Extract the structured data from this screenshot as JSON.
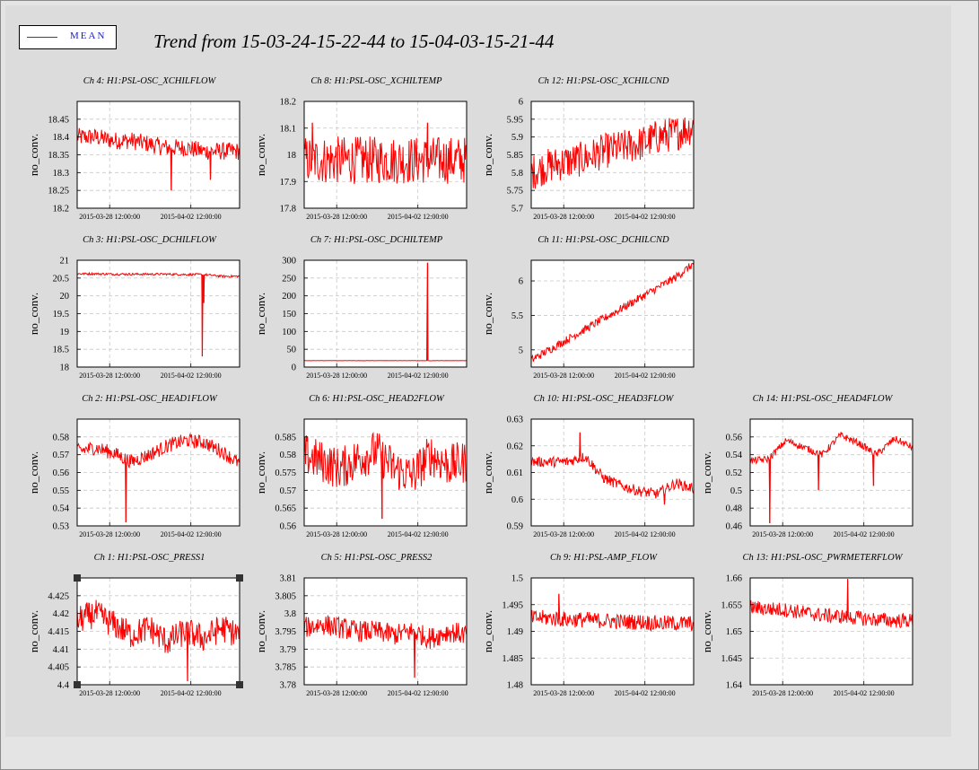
{
  "title": "Trend from 15-03-24-15-22-44 to 15-04-03-15-21-44",
  "legend": {
    "label": "MEAN",
    "color": "#e00000"
  },
  "selected_panel": "Ch 1: H1:PSL-OSC_PRESS1",
  "chart_data": [
    {
      "type": "line",
      "title": "Ch 4: H1:PSL-OSC_XCHILFLOW",
      "ylabel": "no_conv.",
      "ylim": [
        18.2,
        18.5
      ],
      "yticks": [
        "18.2",
        "18.25",
        "18.3",
        "18.35",
        "18.4",
        "18.45"
      ],
      "xticks": [
        "2015-03-28 12:00:00",
        "2015-04-02 12:00:00"
      ],
      "x_ticks_frac": [
        0.2,
        0.7
      ],
      "series": [
        {
          "name": "MEAN",
          "color": "#ff0000",
          "values": [
            18.4,
            18.4,
            18.39,
            18.39,
            18.38,
            18.37,
            18.37,
            18.36,
            18.36,
            18.36
          ],
          "noise": 0.025,
          "spikes": [
            {
              "at": 0.58,
              "v": 18.25
            },
            {
              "at": 0.82,
              "v": 18.28
            }
          ]
        }
      ]
    },
    {
      "type": "line",
      "title": "Ch 8: H1:PSL-OSC_XCHILTEMP",
      "ylabel": "no_conv.",
      "ylim": [
        17.8,
        18.2
      ],
      "yticks": [
        "17.8",
        "17.9",
        "18",
        "18.1",
        "18.2"
      ],
      "xticks": [
        "2015-03-28 12:00:00",
        "2015-04-02 12:00:00"
      ],
      "x_ticks_frac": [
        0.2,
        0.7
      ],
      "series": [
        {
          "name": "MEAN",
          "color": "#ff0000",
          "values": [
            17.98,
            17.98,
            17.98,
            17.98,
            17.98,
            17.98,
            17.98,
            17.98,
            17.98,
            17.98
          ],
          "noise": 0.09,
          "spikes": [
            {
              "at": 0.05,
              "v": 18.12
            },
            {
              "at": 0.76,
              "v": 18.12
            }
          ]
        }
      ]
    },
    {
      "type": "line",
      "title": "Ch 12: H1:PSL-OSC_XCHILCND",
      "ylabel": "no_conv.",
      "ylim": [
        5.7,
        6.0
      ],
      "yticks": [
        "5.7",
        "5.75",
        "5.8",
        "5.85",
        "5.9",
        "5.95",
        "6"
      ],
      "xticks": [
        "2015-03-28 12:00:00",
        "2015-04-02 12:00:00"
      ],
      "x_ticks_frac": [
        0.2,
        0.7
      ],
      "series": [
        {
          "name": "MEAN",
          "color": "#ff0000",
          "values": [
            5.8,
            5.82,
            5.83,
            5.84,
            5.86,
            5.87,
            5.88,
            5.9,
            5.91,
            5.93
          ],
          "noise": 0.05,
          "spikes": []
        }
      ]
    },
    {
      "type": "line",
      "title": "Ch 3: H1:PSL-OSC_DCHILFLOW",
      "ylabel": "no_conv.",
      "ylim": [
        18,
        21
      ],
      "yticks": [
        "18",
        "18.5",
        "19",
        "19.5",
        "20",
        "20.5",
        "21"
      ],
      "xticks": [
        "2015-03-28 12:00:00",
        "2015-04-02 12:00:00"
      ],
      "x_ticks_frac": [
        0.2,
        0.7
      ],
      "series": [
        {
          "name": "MEAN",
          "color": "#ff0000",
          "values": [
            20.62,
            20.62,
            20.61,
            20.61,
            20.61,
            20.61,
            20.6,
            20.6,
            20.55,
            20.55
          ],
          "noise": 0.03,
          "spikes": [
            {
              "at": 0.77,
              "v": 18.3
            },
            {
              "at": 0.78,
              "v": 19.8
            }
          ]
        }
      ]
    },
    {
      "type": "line",
      "title": "Ch 7: H1:PSL-OSC_DCHILTEMP",
      "ylabel": "no_conv.",
      "ylim": [
        0,
        300
      ],
      "yticks": [
        "0",
        "50",
        "100",
        "150",
        "200",
        "250",
        "300"
      ],
      "xticks": [
        "2015-03-28 12:00:00",
        "2015-04-02 12:00:00"
      ],
      "x_ticks_frac": [
        0.2,
        0.7
      ],
      "series": [
        {
          "name": "MEAN",
          "color": "#ff0000",
          "values": [
            18,
            18,
            18,
            18,
            18,
            18,
            18,
            18,
            18,
            18
          ],
          "noise": 0.3,
          "spikes": [
            {
              "at": 0.76,
              "v": 293
            }
          ]
        }
      ]
    },
    {
      "type": "line",
      "title": "Ch 11: H1:PSL-OSC_DCHILCND",
      "ylabel": "no_conv.",
      "ylim": [
        4.75,
        6.3
      ],
      "yticks": [
        "5",
        "5.5",
        "6"
      ],
      "xticks": [
        "2015-03-28 12:00:00",
        "2015-04-02 12:00:00"
      ],
      "x_ticks_frac": [
        0.2,
        0.7
      ],
      "series": [
        {
          "name": "MEAN",
          "color": "#ff0000",
          "values": [
            4.85,
            5.0,
            5.15,
            5.3,
            5.45,
            5.6,
            5.75,
            5.9,
            6.05,
            6.25
          ],
          "noise": 0.06,
          "spikes": []
        }
      ]
    },
    {
      "type": "line",
      "title": "Ch 2: H1:PSL-OSC_HEAD1FLOW",
      "ylabel": "no_conv.",
      "ylim": [
        0.53,
        0.59
      ],
      "yticks": [
        "0.53",
        "0.54",
        "0.55",
        "0.56",
        "0.57",
        "0.58"
      ],
      "xticks": [
        "2015-03-28 12:00:00",
        "2015-04-02 12:00:00"
      ],
      "x_ticks_frac": [
        0.2,
        0.7
      ],
      "series": [
        {
          "name": "MEAN",
          "color": "#ff0000",
          "values": [
            0.572,
            0.574,
            0.571,
            0.566,
            0.57,
            0.575,
            0.578,
            0.577,
            0.572,
            0.565
          ],
          "noise": 0.004,
          "spikes": [
            {
              "at": 0.3,
              "v": 0.532
            }
          ]
        }
      ]
    },
    {
      "type": "line",
      "title": "Ch 6: H1:PSL-OSC_HEAD2FLOW",
      "ylabel": "no_conv.",
      "ylim": [
        0.56,
        0.59
      ],
      "yticks": [
        "0.56",
        "0.565",
        "0.57",
        "0.575",
        "0.58",
        "0.585"
      ],
      "xticks": [
        "2015-03-28 12:00:00",
        "2015-04-02 12:00:00"
      ],
      "x_ticks_frac": [
        0.2,
        0.7
      ],
      "series": [
        {
          "name": "MEAN",
          "color": "#ff0000",
          "values": [
            0.58,
            0.578,
            0.576,
            0.579,
            0.581,
            0.576,
            0.574,
            0.58,
            0.577,
            0.578
          ],
          "noise": 0.006,
          "spikes": [
            {
              "at": 0.48,
              "v": 0.562
            }
          ]
        }
      ]
    },
    {
      "type": "line",
      "title": "Ch 10: H1:PSL-OSC_HEAD3FLOW",
      "ylabel": "no_conv.",
      "ylim": [
        0.59,
        0.63
      ],
      "yticks": [
        "0.59",
        "0.6",
        "0.61",
        "0.62",
        "0.63"
      ],
      "xticks": [
        "2015-03-28 12:00:00",
        "2015-04-02 12:00:00"
      ],
      "x_ticks_frac": [
        0.2,
        0.7
      ],
      "series": [
        {
          "name": "MEAN",
          "color": "#ff0000",
          "values": [
            0.614,
            0.614,
            0.614,
            0.616,
            0.608,
            0.605,
            0.603,
            0.602,
            0.606,
            0.604
          ],
          "noise": 0.002,
          "spikes": [
            {
              "at": 0.3,
              "v": 0.625
            },
            {
              "at": 0.82,
              "v": 0.598
            }
          ]
        }
      ]
    },
    {
      "type": "line",
      "title": "Ch 14: H1:PSL-OSC_HEAD4FLOW",
      "ylabel": "no_conv.",
      "ylim": [
        0.46,
        0.58
      ],
      "yticks": [
        "0.46",
        "0.48",
        "0.5",
        "0.52",
        "0.54",
        "0.56"
      ],
      "xticks": [
        "2015-03-28 12:00:00",
        "2015-04-02 12:00:00"
      ],
      "x_ticks_frac": [
        0.2,
        0.7
      ],
      "series": [
        {
          "name": "MEAN",
          "color": "#ff0000",
          "values": [
            0.533,
            0.535,
            0.556,
            0.548,
            0.54,
            0.562,
            0.553,
            0.54,
            0.558,
            0.548
          ],
          "noise": 0.004,
          "spikes": [
            {
              "at": 0.12,
              "v": 0.463
            },
            {
              "at": 0.42,
              "v": 0.5
            },
            {
              "at": 0.76,
              "v": 0.505
            }
          ]
        }
      ]
    },
    {
      "type": "line",
      "title": "Ch 1: H1:PSL-OSC_PRESS1",
      "ylabel": "no_conv.",
      "ylim": [
        4.4,
        4.43
      ],
      "yticks": [
        "4.4",
        "4.405",
        "4.41",
        "4.415",
        "4.42",
        "4.425"
      ],
      "xticks": [
        "2015-03-28 12:00:00",
        "2015-04-02 12:00:00"
      ],
      "x_ticks_frac": [
        0.2,
        0.7
      ],
      "series": [
        {
          "name": "MEAN",
          "color": "#ff0000",
          "values": [
            4.418,
            4.42,
            4.417,
            4.414,
            4.416,
            4.412,
            4.415,
            4.413,
            4.416,
            4.414
          ],
          "noise": 0.004,
          "spikes": [
            {
              "at": 0.68,
              "v": 4.401
            }
          ]
        }
      ]
    },
    {
      "type": "line",
      "title": "Ch 5: H1:PSL-OSC_PRESS2",
      "ylabel": "no_conv.",
      "ylim": [
        3.78,
        3.81
      ],
      "yticks": [
        "3.78",
        "3.785",
        "3.79",
        "3.795",
        "3.8",
        "3.805",
        "3.81"
      ],
      "xticks": [
        "2015-03-28 12:00:00",
        "2015-04-02 12:00:00"
      ],
      "x_ticks_frac": [
        0.2,
        0.7
      ],
      "series": [
        {
          "name": "MEAN",
          "color": "#ff0000",
          "values": [
            3.796,
            3.797,
            3.796,
            3.795,
            3.795,
            3.794,
            3.795,
            3.793,
            3.795,
            3.794
          ],
          "noise": 0.003,
          "spikes": [
            {
              "at": 0.68,
              "v": 3.782
            }
          ]
        }
      ]
    },
    {
      "type": "line",
      "title": "Ch 9: H1:PSL-AMP_FLOW",
      "ylabel": "no_conv.",
      "ylim": [
        1.48,
        1.5
      ],
      "yticks": [
        "1.48",
        "1.485",
        "1.49",
        "1.495",
        "1.5"
      ],
      "xticks": [
        "2015-03-28 12:00:00",
        "2015-04-02 12:00:00"
      ],
      "x_ticks_frac": [
        0.2,
        0.7
      ],
      "series": [
        {
          "name": "MEAN",
          "color": "#ff0000",
          "values": [
            1.4925,
            1.4925,
            1.4922,
            1.4922,
            1.492,
            1.4918,
            1.4918,
            1.4915,
            1.4915,
            1.4915
          ],
          "noise": 0.0015,
          "spikes": [
            {
              "at": 0.17,
              "v": 1.497
            }
          ]
        }
      ]
    },
    {
      "type": "line",
      "title": "Ch 13: H1:PSL-OSC_PWRMETERFLOW",
      "ylabel": "no_conv.",
      "ylim": [
        1.64,
        1.66
      ],
      "yticks": [
        "1.64",
        "1.645",
        "1.65",
        "1.655",
        "1.66"
      ],
      "xticks": [
        "2015-03-28 12:00:00",
        "2015-04-02 12:00:00"
      ],
      "x_ticks_frac": [
        0.2,
        0.7
      ],
      "series": [
        {
          "name": "MEAN",
          "color": "#ff0000",
          "values": [
            1.6545,
            1.6542,
            1.654,
            1.6535,
            1.653,
            1.6528,
            1.6525,
            1.6522,
            1.652,
            1.652
          ],
          "noise": 0.0014,
          "spikes": [
            {
              "at": 0.6,
              "v": 1.6598
            }
          ]
        }
      ]
    }
  ]
}
